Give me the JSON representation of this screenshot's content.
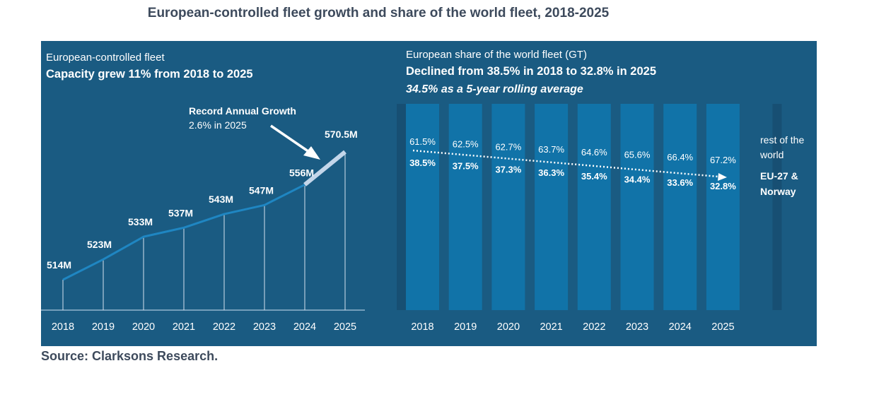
{
  "title": "European-controlled fleet growth and share of the world fleet, 2018-2025",
  "source": "Source: Clarksons Research.",
  "colors": {
    "panel_bg": "#1a5b82",
    "strip_dark": "#174f73",
    "bar_fill": "#1173a8",
    "text": "#ffffff",
    "highlight": "#c3d6ea"
  },
  "left_panel": {
    "subtitle": "European-controlled fleet",
    "headline": "Capacity grew 11% from 2018 to 2025",
    "annotation_title": "Record Annual Growth",
    "annotation_text": "2.6% in 2025"
  },
  "right_panel": {
    "subtitle": "European share of the world fleet (GT)",
    "headline": "Declined from 38.5% in 2018 to 32.8% in 2025",
    "subheadline": "34.5% as a 5-year rolling average",
    "legend_rest": [
      "rest of the",
      "world"
    ],
    "legend_eu": [
      "EU-27 &",
      "Norway"
    ]
  },
  "chart_data": [
    {
      "type": "line",
      "title": "European-controlled fleet",
      "x": [
        "2018",
        "2019",
        "2020",
        "2021",
        "2022",
        "2023",
        "2024",
        "2025"
      ],
      "values": [
        514,
        523,
        533,
        537,
        543,
        547,
        556,
        570.5
      ],
      "labels": [
        "514M",
        "523M",
        "533M",
        "537M",
        "543M",
        "547M",
        "556M",
        "570.5M"
      ],
      "highlight_segment": [
        "2024",
        "2025"
      ]
    },
    {
      "type": "bar",
      "title": "European share of the world fleet (GT)",
      "categories": [
        "2018",
        "2019",
        "2020",
        "2021",
        "2022",
        "2023",
        "2024",
        "2025"
      ],
      "series": [
        {
          "name": "EU-27 & Norway",
          "values": [
            38.5,
            37.5,
            37.3,
            36.3,
            35.4,
            34.4,
            33.6,
            32.8
          ],
          "labels": [
            "38.5%",
            "37.5%",
            "37.3%",
            "36.3%",
            "35.4%",
            "34.4%",
            "33.6%",
            "32.8%"
          ]
        },
        {
          "name": "rest of the world",
          "values": [
            61.5,
            62.5,
            62.7,
            63.7,
            64.6,
            65.6,
            66.4,
            67.2
          ],
          "labels": [
            "61.5%",
            "62.5%",
            "62.7%",
            "63.7%",
            "64.6%",
            "65.6%",
            "66.4%",
            "67.2%"
          ]
        }
      ],
      "trend": "dotted downward trend line with arrow",
      "stacked": true
    }
  ]
}
